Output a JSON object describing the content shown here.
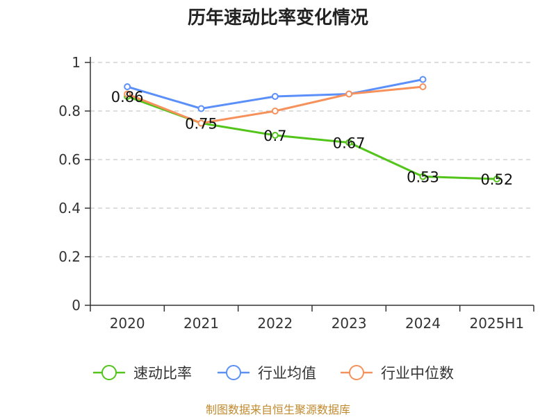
{
  "colors": {
    "sales": "#52c41a",
    "industry_avg": "#5b8ff9",
    "industry_median": "#f6915c",
    "grid": "#bbbbbb",
    "axis": "#333333",
    "source": "#c08a2e"
  },
  "chart_data": {
    "type": "line",
    "title": "历年速动比率变化情况",
    "xlabel": "",
    "ylabel": "",
    "categories": [
      "2020",
      "2021",
      "2022",
      "2023",
      "2024",
      "2025H1"
    ],
    "yticks": [
      "0",
      "0.2",
      "0.4",
      "0.6",
      "0.8",
      "1"
    ],
    "ylim": [
      0,
      1
    ],
    "grid": true,
    "legend_position": "bottom",
    "series": [
      {
        "name": "速动比率",
        "color_key": "sales",
        "values": [
          0.86,
          0.75,
          0.7,
          0.67,
          0.53,
          0.52
        ],
        "labels": [
          "0.86",
          "0.75",
          "0.7",
          "0.67",
          "0.53",
          "0.52"
        ]
      },
      {
        "name": "行业均值",
        "color_key": "industry_avg",
        "values": [
          0.9,
          0.81,
          0.86,
          0.87,
          0.93,
          null
        ]
      },
      {
        "name": "行业中位数",
        "color_key": "industry_median",
        "values": [
          0.87,
          0.75,
          0.8,
          0.87,
          0.9,
          null
        ]
      }
    ]
  },
  "source_text": "制图数据来自恒生聚源数据库"
}
